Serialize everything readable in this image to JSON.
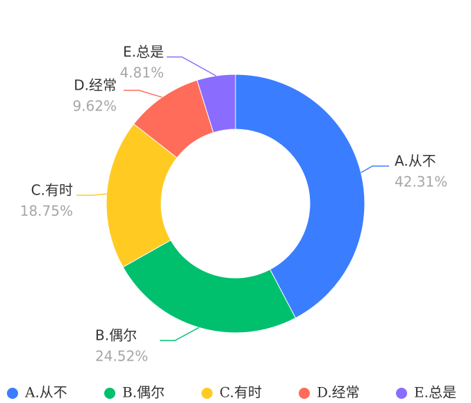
{
  "chart_data": {
    "type": "pie",
    "variant": "donut",
    "title": "",
    "categories": [
      "A.从不",
      "B.偶尔",
      "C.有时",
      "D.经常",
      "E.总是"
    ],
    "values": [
      42.31,
      24.52,
      18.75,
      9.62,
      4.81
    ],
    "value_labels": [
      "42.31%",
      "24.52%",
      "18.75%",
      "9.62%",
      "4.81%"
    ],
    "colors": [
      "#3a7dff",
      "#00c06e",
      "#ffcb23",
      "#ff6c5a",
      "#8a6dff"
    ],
    "legend": {
      "position": "bottom",
      "items": [
        "A.从不",
        "B.偶尔",
        "C.有时",
        "D.经常",
        "E.总是"
      ]
    }
  }
}
